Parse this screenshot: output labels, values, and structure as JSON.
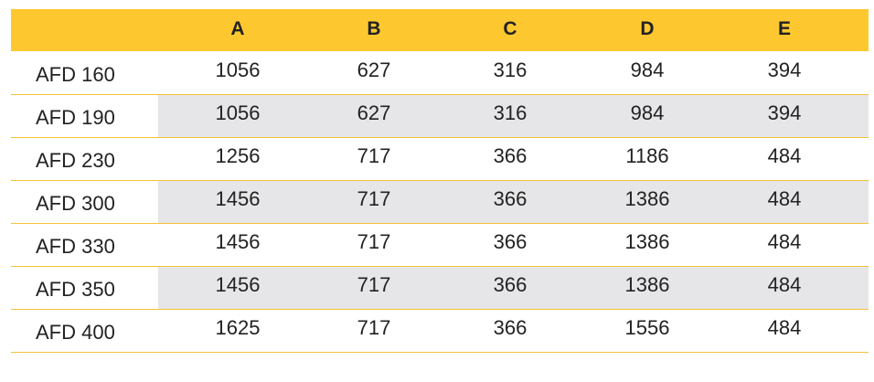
{
  "table": {
    "columns": [
      "A",
      "B",
      "C",
      "D",
      "E"
    ],
    "rows": [
      {
        "label": "AFD 160",
        "values": [
          1056,
          627,
          316,
          984,
          394
        ]
      },
      {
        "label": "AFD 190",
        "values": [
          1056,
          627,
          316,
          984,
          394
        ]
      },
      {
        "label": "AFD 230",
        "values": [
          1256,
          717,
          366,
          1186,
          484
        ]
      },
      {
        "label": "AFD 300",
        "values": [
          1456,
          717,
          366,
          1386,
          484
        ]
      },
      {
        "label": "AFD 330",
        "values": [
          1456,
          717,
          366,
          1386,
          484
        ]
      },
      {
        "label": "AFD 350",
        "values": [
          1456,
          717,
          366,
          1386,
          484
        ]
      },
      {
        "label": "AFD 400",
        "values": [
          1625,
          717,
          366,
          1556,
          484
        ]
      }
    ]
  }
}
